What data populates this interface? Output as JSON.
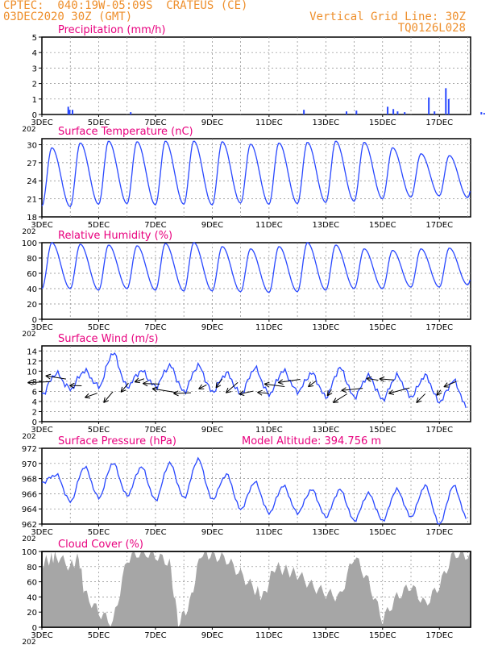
{
  "header": {
    "line1": "CPTEC:  040:19W-05:09S  CRATEUS (CE)",
    "line2": "03DEC2020 30Z (GMT)",
    "grid_note": "Vertical Grid Line: 30Z",
    "run_id": "TQ0126L028"
  },
  "x_ticks": [
    "3DEC",
    "5DEC",
    "7DEC",
    "9DEC",
    "11DEC",
    "13DEC",
    "15DEC",
    "17DEC"
  ],
  "year_stub": "202",
  "colors": {
    "header": "#ee8f2c",
    "title": "#e8007e",
    "line": "#2948ff",
    "cloud": "#a6a6a6",
    "frame": "#000000"
  },
  "chart_data": [
    {
      "type": "bar",
      "title": "Precipitation (mm/h)",
      "ylim": [
        0,
        5
      ],
      "y_ticks": [
        "0",
        "1",
        "2",
        "3",
        "4",
        "5"
      ],
      "x_days": [
        0.9,
        0.95,
        1.05,
        3.1,
        9.2,
        10.7,
        11.05,
        12.15,
        12.35,
        12.5,
        12.75,
        13.6,
        13.8,
        14.2,
        14.3,
        15.45,
        15.55,
        16.3,
        17.35,
        17.45
      ],
      "values": [
        0.5,
        0.3,
        0.3,
        0.15,
        0.3,
        0.2,
        0.25,
        0.5,
        0.35,
        0.2,
        0.15,
        1.1,
        0.2,
        1.7,
        1.0,
        0.15,
        0.1,
        0.3,
        0.7,
        0.95
      ]
    },
    {
      "type": "line",
      "title": "Surface Temperature (nC)",
      "ylim": [
        18,
        31
      ],
      "y_ticks": [
        "18",
        "21",
        "24",
        "27",
        "30"
      ],
      "days": [
        0,
        1,
        2,
        3,
        4,
        5,
        6,
        7,
        8,
        9,
        10,
        11,
        12,
        13,
        14,
        15
      ],
      "max": [
        29.5,
        30.3,
        30.6,
        30.5,
        30.6,
        30.6,
        30.5,
        30.1,
        30.3,
        30.4,
        30.6,
        30.4,
        29.5,
        28.5,
        28.2,
        29.4
      ],
      "min": [
        19.8,
        19.7,
        20.1,
        20.2,
        20.0,
        20.1,
        20.0,
        20.3,
        20.1,
        20.2,
        20.4,
        20.6,
        21.0,
        21.3,
        21.5,
        21.2
      ]
    },
    {
      "type": "line",
      "title": "Relative Humidity (%)",
      "ylim": [
        0,
        100
      ],
      "y_ticks": [
        "0",
        "20",
        "40",
        "60",
        "80",
        "100"
      ],
      "days": [
        0,
        1,
        2,
        3,
        4,
        5,
        6,
        7,
        8,
        9,
        10,
        11,
        12,
        13,
        14,
        15
      ],
      "max": [
        100,
        98,
        97,
        96,
        99,
        100,
        95,
        92,
        95,
        100,
        97,
        92,
        90,
        92,
        93,
        95
      ],
      "min": [
        40,
        40,
        38,
        40,
        38,
        37,
        37,
        36,
        35,
        36,
        38,
        40,
        40,
        42,
        42,
        45
      ]
    },
    {
      "type": "line",
      "title": "Surface Wind (m/s)",
      "ylim": [
        0,
        15
      ],
      "y_ticks": [
        "0",
        "2",
        "4",
        "6",
        "8",
        "10",
        "12",
        "14"
      ],
      "days": [
        0,
        0.5,
        1,
        1.5,
        2,
        2.5,
        3,
        3.5,
        4,
        4.5,
        5,
        5.5,
        6,
        6.5,
        7,
        7.5,
        8,
        8.5,
        9,
        9.5,
        10,
        10.5,
        11,
        11.5,
        12,
        12.5,
        13,
        13.5,
        14,
        14.5,
        15
      ],
      "values": [
        5.5,
        9.5,
        6.5,
        10,
        7,
        13.5,
        7,
        10,
        7,
        11,
        6,
        11,
        6,
        9.5,
        5.5,
        10.5,
        5.5,
        10,
        6,
        9.5,
        5,
        10.5,
        5,
        9,
        4.5,
        9,
        5,
        9,
        4,
        8,
        2.5
      ]
    },
    {
      "type": "line",
      "title": "Surface Pressure (hPa)",
      "annotation": "Model Altitude: 394.756 m",
      "ylim": [
        962,
        972
      ],
      "y_ticks": [
        "962",
        "964",
        "966",
        "968",
        "970",
        "972"
      ],
      "days": [
        0,
        0.5,
        1,
        1.5,
        2,
        2.5,
        3,
        3.5,
        4,
        4.5,
        5,
        5.5,
        6,
        6.5,
        7,
        7.5,
        8,
        8.5,
        9,
        9.5,
        10,
        10.5,
        11,
        11.5,
        12,
        12.5,
        13,
        13.5,
        14,
        14.5,
        15
      ],
      "values": [
        967.5,
        968.5,
        965,
        969.5,
        965.5,
        970,
        965.8,
        969.5,
        965.2,
        970,
        965.5,
        970.5,
        965.3,
        968.5,
        964,
        967.5,
        963.5,
        967,
        963.5,
        966.5,
        963,
        966.5,
        962.5,
        966,
        962.5,
        966.5,
        963,
        967,
        962,
        967,
        962.5
      ]
    },
    {
      "type": "area",
      "title": "Cloud Cover (%)",
      "ylim": [
        0,
        100
      ],
      "y_ticks": [
        "0",
        "20",
        "40",
        "60",
        "80",
        "100"
      ],
      "x_days": [
        0,
        0.3,
        0.5,
        1.0,
        1.3,
        1.5,
        2.0,
        2.5,
        3.0,
        3.5,
        4.0,
        4.5,
        4.8,
        5.2,
        5.6,
        6.0,
        6.5,
        7.0,
        7.5,
        7.8,
        8.2,
        8.6,
        9.0,
        9.5,
        10.0,
        10.5,
        11.0,
        11.5,
        12.0,
        12.5,
        13.0,
        13.5,
        14.0,
        14.5,
        15.0,
        15.5,
        16.0,
        16.5,
        17.0,
        17.5,
        18.0
      ],
      "values": [
        85,
        90,
        95,
        80,
        92,
        45,
        20,
        5,
        90,
        100,
        95,
        85,
        5,
        30,
        98,
        95,
        90,
        70,
        50,
        40,
        80,
        75,
        70,
        55,
        45,
        40,
        95,
        60,
        10,
        40,
        55,
        30,
        55,
        98,
        95,
        85,
        40,
        90,
        85,
        95,
        95
      ]
    }
  ]
}
